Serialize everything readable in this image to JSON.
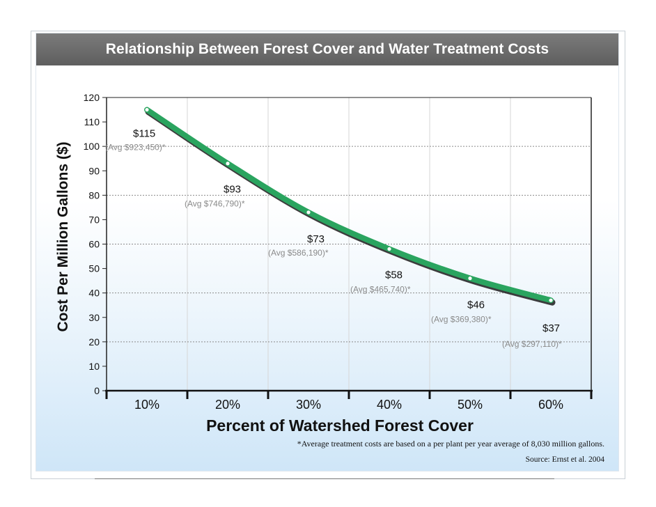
{
  "chart_data": {
    "type": "line",
    "title": "Relationship Between Forest Cover and Water Treatment Costs",
    "xlabel": "Percent of Watershed Forest Cover",
    "ylabel": "Cost Per Million Gallons ($)",
    "categories": [
      "10%",
      "20%",
      "30%",
      "40%",
      "50%",
      "60%"
    ],
    "series": [
      {
        "values": [
          115,
          93,
          73,
          58,
          46,
          37
        ]
      }
    ],
    "value_labels": [
      "$115",
      "$93",
      "$73",
      "$58",
      "$46",
      "$37"
    ],
    "annotations": [
      "(Avg $923,450)*",
      "(Avg $746,790)*",
      "(Avg $586,190)*",
      "(Avg $465,740)*",
      "(Avg $369,380)*",
      "(Avg $297,110)*"
    ],
    "ylim": [
      0,
      120
    ],
    "yticks": [
      0,
      10,
      20,
      30,
      40,
      50,
      60,
      70,
      80,
      90,
      100,
      110,
      120
    ],
    "grid": true,
    "line_color": "#2aa45f"
  },
  "footnote": "*Average treatment costs are based on a per plant per year average of 8,030 million gallons.",
  "source": "Source: Ernst et al. 2004"
}
